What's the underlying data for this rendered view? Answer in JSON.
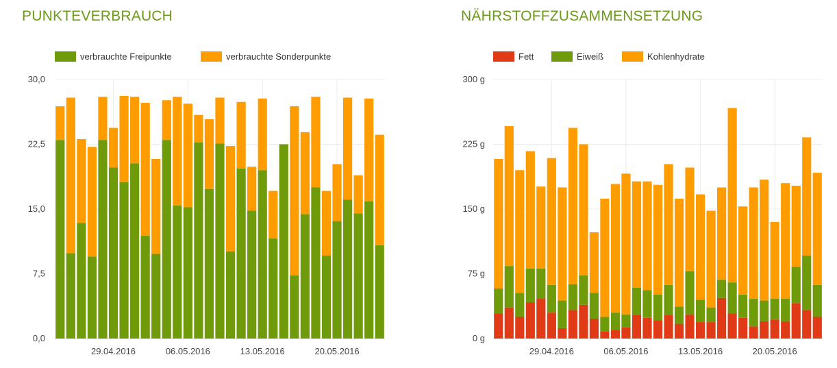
{
  "chart_data": [
    {
      "type": "bar",
      "stacked": true,
      "title": "PUNKTEVERBRAUCH",
      "legend_position": "top-left",
      "grid": true,
      "ylim": [
        0,
        30
      ],
      "yticks": [
        "0,0",
        "7,5",
        "15,0",
        "22,5",
        "30,0"
      ],
      "ytick_values": [
        0,
        7.5,
        15,
        22.5,
        30
      ],
      "xtick_labels": [
        {
          "label": "29.04.2016",
          "index": 5.5
        },
        {
          "label": "06.05.2016",
          "index": 12.5
        },
        {
          "label": "13.05.2016",
          "index": 19.5
        },
        {
          "label": "20.05.2016",
          "index": 26.5
        }
      ],
      "count": 31,
      "series": [
        {
          "name": "verbrauchte Freipunkte",
          "color": "#6f9a09",
          "values": [
            23.0,
            9.9,
            13.4,
            9.5,
            23.0,
            19.8,
            18.1,
            20.3,
            11.9,
            9.8,
            23.0,
            15.4,
            15.2,
            22.7,
            17.3,
            22.6,
            10.1,
            19.7,
            14.8,
            19.5,
            11.6,
            22.5,
            7.3,
            14.4,
            17.5,
            9.6,
            13.6,
            16.1,
            14.5,
            15.9,
            10.8
          ]
        },
        {
          "name": "verbrauchte Sonderpunkte",
          "color": "#ff9c00",
          "values": [
            3.9,
            18.0,
            9.7,
            12.7,
            5.0,
            4.6,
            10.0,
            7.7,
            15.4,
            11.0,
            4.6,
            12.6,
            12.0,
            3.2,
            8.1,
            5.3,
            12.2,
            7.7,
            5.1,
            8.3,
            5.5,
            0.0,
            19.6,
            9.5,
            10.5,
            7.5,
            6.6,
            11.8,
            4.4,
            11.9,
            12.8
          ]
        }
      ]
    },
    {
      "type": "bar",
      "stacked": true,
      "title": "NÄHRSTOFFZUSAMMENSETZUNG",
      "legend_position": "top-left",
      "grid": true,
      "ylim": [
        0,
        300
      ],
      "yticks": [
        "0 g",
        "75 g",
        "150 g",
        "225 g",
        "300 g"
      ],
      "ytick_values": [
        0,
        75,
        150,
        225,
        300
      ],
      "xtick_labels": [
        {
          "label": "29.04.2016",
          "index": 5.5
        },
        {
          "label": "06.05.2016",
          "index": 12.5
        },
        {
          "label": "13.05.2016",
          "index": 19.5
        },
        {
          "label": "20.05.2016",
          "index": 26.5
        }
      ],
      "count": 31,
      "series": [
        {
          "name": "Fett",
          "color": "#e03a16",
          "values": [
            29,
            36,
            25,
            42,
            46,
            30,
            12,
            33,
            39,
            23,
            8,
            10,
            13,
            27,
            24,
            21,
            27,
            17,
            28,
            19,
            19,
            47,
            29,
            24,
            14,
            20,
            22,
            20,
            41,
            33,
            25
          ]
        },
        {
          "name": "Eiweiß",
          "color": "#6f9a09",
          "values": [
            29,
            48,
            28,
            39,
            35,
            32,
            32,
            30,
            34,
            30,
            17,
            20,
            15,
            32,
            32,
            30,
            35,
            20,
            50,
            26,
            17,
            21,
            36,
            27,
            32,
            24,
            24,
            26,
            42,
            63,
            37
          ]
        },
        {
          "name": "Kohlenhydrate",
          "color": "#ff9c00",
          "values": [
            150,
            162,
            142,
            136,
            95,
            147,
            131,
            181,
            152,
            70,
            137,
            149,
            163,
            123,
            126,
            127,
            140,
            125,
            120,
            122,
            112,
            107,
            202,
            102,
            129,
            140,
            89,
            134,
            94,
            137,
            130
          ]
        }
      ]
    }
  ]
}
